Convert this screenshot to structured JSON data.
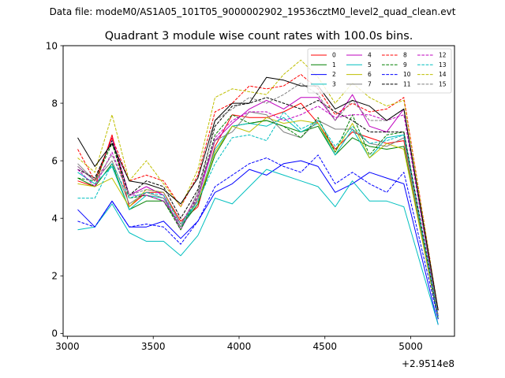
{
  "suptitle": "Data file: modeM0/AS1A05_101T05_9000002902_19536cztM0_level2_quad_clean.evt",
  "chart_data": {
    "type": "line",
    "title": "Quadrant 3 module wise count rates with 100.0s bins.",
    "xlabel": "",
    "ylabel": "",
    "x_offset_label": "+2.9514e8",
    "xlim": [
      2975,
      5255
    ],
    "ylim": [
      -0.1,
      10
    ],
    "xticks": [
      3000,
      3500,
      4000,
      4500,
      5000
    ],
    "yticks": [
      0,
      2,
      4,
      6,
      8,
      10
    ],
    "grid": false,
    "legend_location": "top-right",
    "x": [
      3060,
      3160,
      3260,
      3360,
      3460,
      3560,
      3660,
      3760,
      3860,
      3960,
      4060,
      4160,
      4260,
      4360,
      4460,
      4560,
      4660,
      4760,
      4860,
      4960,
      5160
    ],
    "series": [
      {
        "name": "0",
        "color": "#ff0000",
        "dash": false,
        "values": [
          5.3,
          5.1,
          6.9,
          4.4,
          4.9,
          4.9,
          3.9,
          4.4,
          6.5,
          7.6,
          7.5,
          7.5,
          7.7,
          8.0,
          7.3,
          6.4,
          7.0,
          6.8,
          6.6,
          6.7,
          0.6
        ]
      },
      {
        "name": "1",
        "color": "#008000",
        "dash": false,
        "values": [
          5.4,
          5.1,
          5.9,
          4.3,
          4.6,
          4.6,
          3.7,
          4.5,
          6.2,
          7.2,
          7.3,
          7.4,
          7.2,
          7.0,
          7.2,
          6.2,
          6.8,
          6.5,
          6.4,
          6.5,
          0.5
        ]
      },
      {
        "name": "2",
        "color": "#0000ff",
        "dash": false,
        "values": [
          4.3,
          3.7,
          4.6,
          3.7,
          3.7,
          3.9,
          3.3,
          3.9,
          4.9,
          5.2,
          5.7,
          5.5,
          5.9,
          6.0,
          5.8,
          4.9,
          5.2,
          5.6,
          5.4,
          5.2,
          0.3
        ]
      },
      {
        "name": "3",
        "color": "#00bfbf",
        "dash": false,
        "values": [
          3.6,
          3.7,
          4.5,
          3.5,
          3.2,
          3.2,
          2.7,
          3.4,
          4.7,
          4.5,
          5.1,
          5.7,
          5.5,
          5.3,
          5.1,
          4.4,
          5.3,
          4.6,
          4.6,
          4.4,
          0.3
        ]
      },
      {
        "name": "4",
        "color": "#bf00bf",
        "dash": false,
        "values": [
          5.8,
          5.3,
          6.8,
          4.8,
          5.1,
          4.8,
          3.6,
          4.7,
          6.7,
          7.3,
          7.8,
          8.1,
          7.8,
          8.2,
          8.2,
          7.4,
          8.3,
          7.2,
          7.0,
          7.8,
          0.6
        ]
      },
      {
        "name": "5",
        "color": "#00bfbf",
        "dash": false,
        "values": [
          5.6,
          5.2,
          5.8,
          4.3,
          4.8,
          4.7,
          3.7,
          4.6,
          6.4,
          7.2,
          7.3,
          7.2,
          7.5,
          7.0,
          7.3,
          6.2,
          7.1,
          6.1,
          6.8,
          6.9,
          0.5
        ]
      },
      {
        "name": "6",
        "color": "#bfbf00",
        "dash": false,
        "values": [
          5.2,
          5.1,
          5.4,
          4.4,
          5.0,
          4.9,
          3.8,
          4.6,
          6.3,
          7.2,
          7.0,
          7.5,
          7.3,
          7.4,
          7.3,
          6.3,
          7.3,
          6.1,
          6.6,
          6.4,
          0.5
        ]
      },
      {
        "name": "7",
        "color": "#808080",
        "dash": false,
        "values": [
          5.9,
          5.3,
          6.0,
          4.5,
          4.9,
          4.7,
          3.7,
          4.9,
          6.7,
          7.0,
          7.7,
          7.6,
          7.0,
          6.8,
          7.4,
          7.1,
          7.1,
          6.6,
          6.5,
          6.8,
          0.5
        ]
      },
      {
        "name": "8",
        "color": "#ff0000",
        "dash": true,
        "values": [
          6.4,
          5.3,
          6.8,
          5.3,
          5.5,
          5.3,
          4.4,
          5.5,
          7.7,
          8.0,
          8.6,
          8.5,
          8.6,
          9.0,
          8.5,
          7.6,
          8.0,
          7.7,
          7.8,
          8.2,
          0.8
        ]
      },
      {
        "name": "9",
        "color": "#008000",
        "dash": true,
        "values": [
          5.4,
          5.3,
          6.6,
          4.7,
          4.8,
          4.6,
          3.6,
          4.8,
          6.9,
          7.6,
          7.3,
          7.4,
          7.2,
          6.8,
          7.5,
          6.3,
          7.6,
          6.2,
          6.9,
          7.0,
          0.5
        ]
      },
      {
        "name": "10",
        "color": "#0000ff",
        "dash": true,
        "values": [
          3.9,
          3.7,
          4.6,
          3.7,
          3.8,
          3.7,
          3.1,
          3.9,
          5.1,
          5.5,
          5.9,
          6.1,
          5.8,
          5.6,
          6.2,
          5.2,
          5.6,
          5.2,
          4.9,
          5.6,
          0.5
        ]
      },
      {
        "name": "11",
        "color": "#000000",
        "dash": true,
        "values": [
          5.7,
          5.4,
          6.7,
          4.8,
          5.3,
          5.1,
          4.0,
          5.0,
          7.2,
          7.9,
          8.0,
          8.2,
          8.0,
          7.8,
          8.1,
          7.7,
          7.4,
          7.0,
          7.0,
          7.0,
          0.6
        ]
      },
      {
        "name": "12",
        "color": "#bf00bf",
        "dash": true,
        "values": [
          5.7,
          5.1,
          6.3,
          4.8,
          4.8,
          4.6,
          3.8,
          4.8,
          6.8,
          7.4,
          7.7,
          7.7,
          7.4,
          7.6,
          7.9,
          7.5,
          7.6,
          7.6,
          7.4,
          7.6,
          0.6
        ]
      },
      {
        "name": "13",
        "color": "#00bfbf",
        "dash": true,
        "values": [
          4.7,
          4.7,
          5.9,
          4.7,
          4.9,
          4.8,
          3.8,
          4.6,
          5.9,
          6.8,
          6.9,
          6.7,
          7.7,
          7.1,
          7.4,
          6.5,
          7.2,
          6.6,
          6.7,
          6.9,
          0.6
        ]
      },
      {
        "name": "14",
        "color": "#bfbf00",
        "dash": true,
        "values": [
          6.1,
          5.6,
          7.6,
          5.3,
          6.0,
          5.2,
          4.4,
          5.7,
          8.2,
          8.5,
          8.4,
          8.3,
          9.0,
          9.5,
          8.9,
          8.0,
          8.7,
          8.2,
          7.9,
          8.1,
          0.8
        ]
      },
      {
        "name": "15",
        "color": "#808080",
        "dash": true,
        "values": [
          5.8,
          5.3,
          6.2,
          4.8,
          5.0,
          4.9,
          3.8,
          4.7,
          7.4,
          7.8,
          8.2,
          8.0,
          8.3,
          8.7,
          8.3,
          7.4,
          8.1,
          7.4,
          7.4,
          7.8,
          0.6
        ]
      },
      {
        "name": "",
        "color": "#000000",
        "dash": false,
        "values": [
          6.8,
          5.8,
          6.6,
          5.3,
          5.2,
          5.0,
          4.5,
          5.4,
          7.4,
          8.0,
          8.0,
          8.9,
          8.8,
          8.6,
          8.6,
          7.8,
          8.1,
          7.9,
          7.4,
          7.8,
          0.8
        ]
      }
    ]
  }
}
